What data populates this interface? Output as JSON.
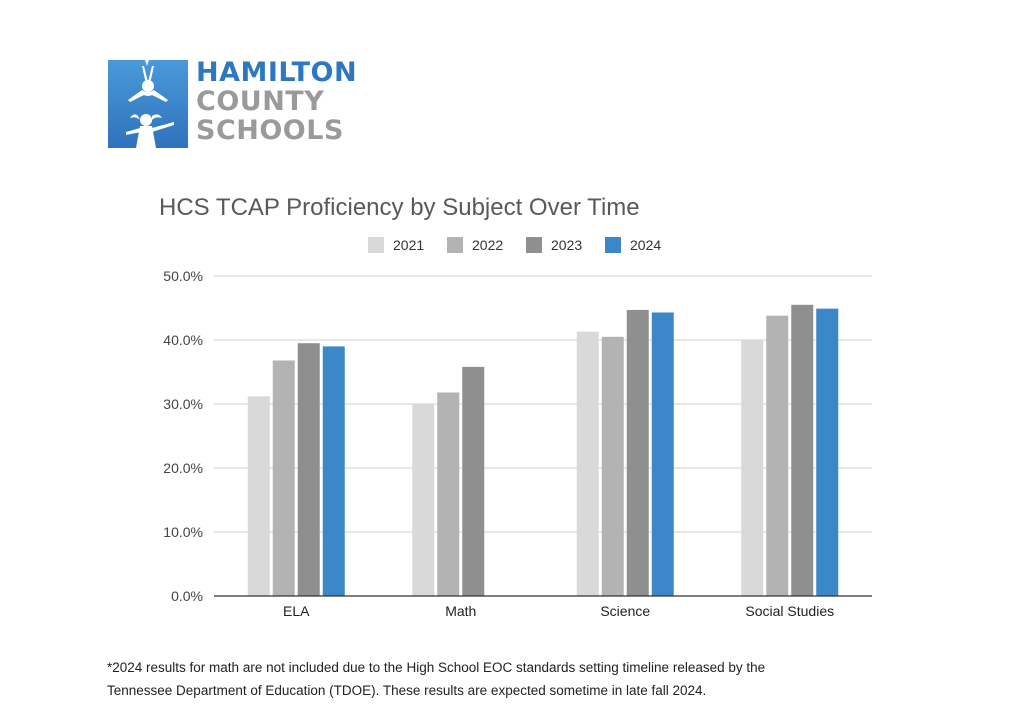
{
  "logo": {
    "line1": "HAMILTON",
    "line2": "COUNTY",
    "line3": "SCHOOLS",
    "icon": "children-silhouette-icon"
  },
  "chart_data": {
    "type": "bar",
    "title": "HCS TCAP Proficiency by Subject Over Time",
    "categories": [
      "ELA",
      "Math",
      "Science",
      "Social Studies"
    ],
    "series": [
      {
        "name": "2021",
        "color": "#d9d9d9",
        "values": [
          31.2,
          30.0,
          41.3,
          40.0
        ]
      },
      {
        "name": "2022",
        "color": "#b3b3b3",
        "values": [
          36.8,
          31.8,
          40.5,
          43.8
        ]
      },
      {
        "name": "2023",
        "color": "#8f8f8f",
        "values": [
          39.5,
          35.8,
          44.7,
          45.5
        ]
      },
      {
        "name": "2024",
        "color": "#3b87c8",
        "values": [
          39.0,
          null,
          44.3,
          44.9
        ]
      }
    ],
    "ylim": [
      0,
      50
    ],
    "yticks": [
      "0.0%",
      "10.0%",
      "20.0%",
      "30.0%",
      "40.0%",
      "50.0%"
    ],
    "grid": true,
    "legend_position": "top"
  },
  "footnote": {
    "line1": "*2024 results for math are not included due to the High School EOC standards setting timeline released by the",
    "line2": "Tennessee Department of Education (TDOE).  These results are expected sometime in late fall 2024."
  }
}
